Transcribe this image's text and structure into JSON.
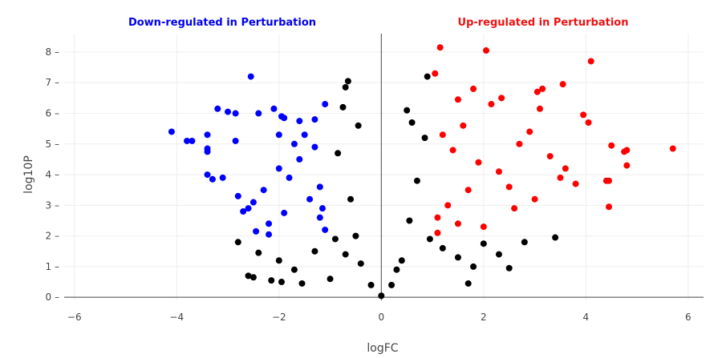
{
  "chart_data": {
    "type": "scatter",
    "xlabel": "logFC",
    "ylabel": "log10P",
    "xlim": [
      -6.2,
      6.3
    ],
    "ylim": [
      -0.1,
      8.6
    ],
    "xticks": [
      -6,
      -4,
      -2,
      0,
      2,
      4,
      6
    ],
    "xtick_labels": [
      "−6",
      "−4",
      "−2",
      "0",
      "2",
      "4",
      "6"
    ],
    "yticks": [
      0,
      1,
      2,
      3,
      4,
      5,
      6,
      7,
      8
    ],
    "ytick_labels": [
      "0",
      "1",
      "2",
      "3",
      "4",
      "5",
      "6",
      "7",
      "8"
    ],
    "grid": true,
    "legend": "none",
    "annotations": [
      {
        "text": "Down-regulated in Perturbation",
        "color": "#0000ee",
        "position": "top-left"
      },
      {
        "text": "Up-regulated in Perturbation",
        "color": "#ee1111",
        "position": "top-right"
      }
    ],
    "series": [
      {
        "color": "#0000ff",
        "points": [
          [
            -4.1,
            5.4
          ],
          [
            -3.8,
            5.1
          ],
          [
            -3.7,
            5.1
          ],
          [
            -3.4,
            5.3
          ],
          [
            -3.4,
            4.85
          ],
          [
            -3.4,
            4.75
          ],
          [
            -3.4,
            4.0
          ],
          [
            -3.3,
            3.85
          ],
          [
            -3.1,
            3.9
          ],
          [
            -3.2,
            6.15
          ],
          [
            -3.0,
            6.05
          ],
          [
            -2.85,
            6.0
          ],
          [
            -2.85,
            5.1
          ],
          [
            -2.55,
            7.2
          ],
          [
            -2.4,
            6.0
          ],
          [
            -2.1,
            6.15
          ],
          [
            -1.95,
            5.9
          ],
          [
            -1.9,
            5.85
          ],
          [
            -1.6,
            5.75
          ],
          [
            -1.3,
            5.8
          ],
          [
            -1.1,
            6.3
          ],
          [
            -2.5,
            3.1
          ],
          [
            -2.8,
            3.3
          ],
          [
            -2.6,
            2.9
          ],
          [
            -2.7,
            2.8
          ],
          [
            -2.3,
            3.5
          ],
          [
            -2.0,
            4.2
          ],
          [
            -1.8,
            3.9
          ],
          [
            -1.6,
            4.5
          ],
          [
            -1.4,
            3.2
          ],
          [
            -1.2,
            2.6
          ],
          [
            -1.1,
            2.2
          ],
          [
            -2.2,
            2.4
          ],
          [
            -2.45,
            2.15
          ],
          [
            -2.2,
            2.05
          ],
          [
            -1.9,
            2.75
          ],
          [
            -1.3,
            4.9
          ],
          [
            -1.5,
            5.3
          ],
          [
            -1.7,
            5.0
          ],
          [
            -2.0,
            5.3
          ],
          [
            -1.2,
            3.6
          ],
          [
            -1.15,
            2.9
          ]
        ]
      },
      {
        "color": "#ff0000",
        "points": [
          [
            1.15,
            8.15
          ],
          [
            2.05,
            8.05
          ],
          [
            4.1,
            7.7
          ],
          [
            1.05,
            7.3
          ],
          [
            3.55,
            6.95
          ],
          [
            3.15,
            6.8
          ],
          [
            3.05,
            6.7
          ],
          [
            2.35,
            6.5
          ],
          [
            1.5,
            6.45
          ],
          [
            1.8,
            6.8
          ],
          [
            3.1,
            6.15
          ],
          [
            3.95,
            5.95
          ],
          [
            4.05,
            5.7
          ],
          [
            2.15,
            6.3
          ],
          [
            5.7,
            4.85
          ],
          [
            4.8,
            4.8
          ],
          [
            4.75,
            4.75
          ],
          [
            4.5,
            4.95
          ],
          [
            4.8,
            4.3
          ],
          [
            4.45,
            3.8
          ],
          [
            4.45,
            2.95
          ],
          [
            4.4,
            3.8
          ],
          [
            3.8,
            3.7
          ],
          [
            3.5,
            3.9
          ],
          [
            2.0,
            2.3
          ],
          [
            1.5,
            2.4
          ],
          [
            1.1,
            2.1
          ],
          [
            1.3,
            3.0
          ],
          [
            1.7,
            3.5
          ],
          [
            2.6,
            2.9
          ],
          [
            3.0,
            3.2
          ],
          [
            2.3,
            4.1
          ],
          [
            1.9,
            4.4
          ],
          [
            1.4,
            4.8
          ],
          [
            1.2,
            5.3
          ],
          [
            2.7,
            5.0
          ],
          [
            3.3,
            4.6
          ],
          [
            1.6,
            5.6
          ],
          [
            2.5,
            3.6
          ],
          [
            1.1,
            2.6
          ],
          [
            3.6,
            4.2
          ],
          [
            2.9,
            5.4
          ]
        ]
      },
      {
        "color": "#000000",
        "points": [
          [
            -0.65,
            7.05
          ],
          [
            -0.7,
            6.85
          ],
          [
            -0.75,
            6.2
          ],
          [
            0.9,
            7.2
          ],
          [
            3.4,
            1.95
          ],
          [
            2.5,
            0.95
          ],
          [
            2.0,
            1.75
          ],
          [
            1.7,
            0.45
          ],
          [
            -2.8,
            1.8
          ],
          [
            -2.6,
            0.7
          ],
          [
            -2.5,
            0.65
          ],
          [
            -2.15,
            0.55
          ],
          [
            -1.95,
            0.5
          ],
          [
            -1.55,
            0.45
          ],
          [
            -2.4,
            1.45
          ],
          [
            -2.0,
            1.2
          ],
          [
            -1.7,
            0.9
          ],
          [
            -1.3,
            1.5
          ],
          [
            -1.0,
            0.6
          ],
          [
            -0.85,
            4.7
          ],
          [
            -0.6,
            3.2
          ],
          [
            -0.5,
            2.0
          ],
          [
            -0.4,
            1.1
          ],
          [
            -0.2,
            0.4
          ],
          [
            0.0,
            0.05
          ],
          [
            0.2,
            0.4
          ],
          [
            0.4,
            1.2
          ],
          [
            0.55,
            2.5
          ],
          [
            0.7,
            3.8
          ],
          [
            0.85,
            5.2
          ],
          [
            0.6,
            5.7
          ],
          [
            1.2,
            1.6
          ],
          [
            1.5,
            1.3
          ],
          [
            1.8,
            1.0
          ],
          [
            2.3,
            1.4
          ],
          [
            2.8,
            1.8
          ],
          [
            -0.9,
            1.9
          ],
          [
            -0.7,
            1.4
          ],
          [
            0.3,
            0.9
          ],
          [
            0.95,
            1.9
          ],
          [
            -0.45,
            5.6
          ],
          [
            0.5,
            6.1
          ]
        ]
      }
    ]
  }
}
